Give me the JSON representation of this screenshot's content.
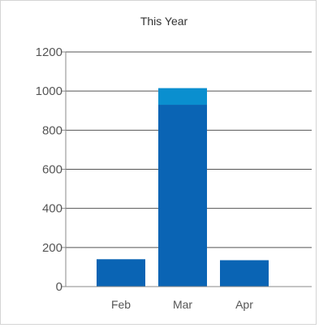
{
  "chart_data": {
    "type": "bar",
    "title": "This Year",
    "xlabel": "",
    "ylabel": "",
    "categories": [
      "Feb",
      "Mar",
      "Apr"
    ],
    "series": [
      {
        "values": [
          140,
          930,
          135
        ]
      },
      {
        "values": [
          0,
          85,
          0
        ]
      }
    ],
    "ylim": [
      0,
      1200
    ],
    "yticks": [
      "0",
      "200",
      "400",
      "600",
      "800",
      "1000",
      "1200"
    ],
    "grid": true,
    "legend": "none",
    "colors": {
      "primary": "#0a64b4",
      "secondary": "#0a8fcf",
      "grid": "#555555",
      "axis": "#888888"
    }
  }
}
